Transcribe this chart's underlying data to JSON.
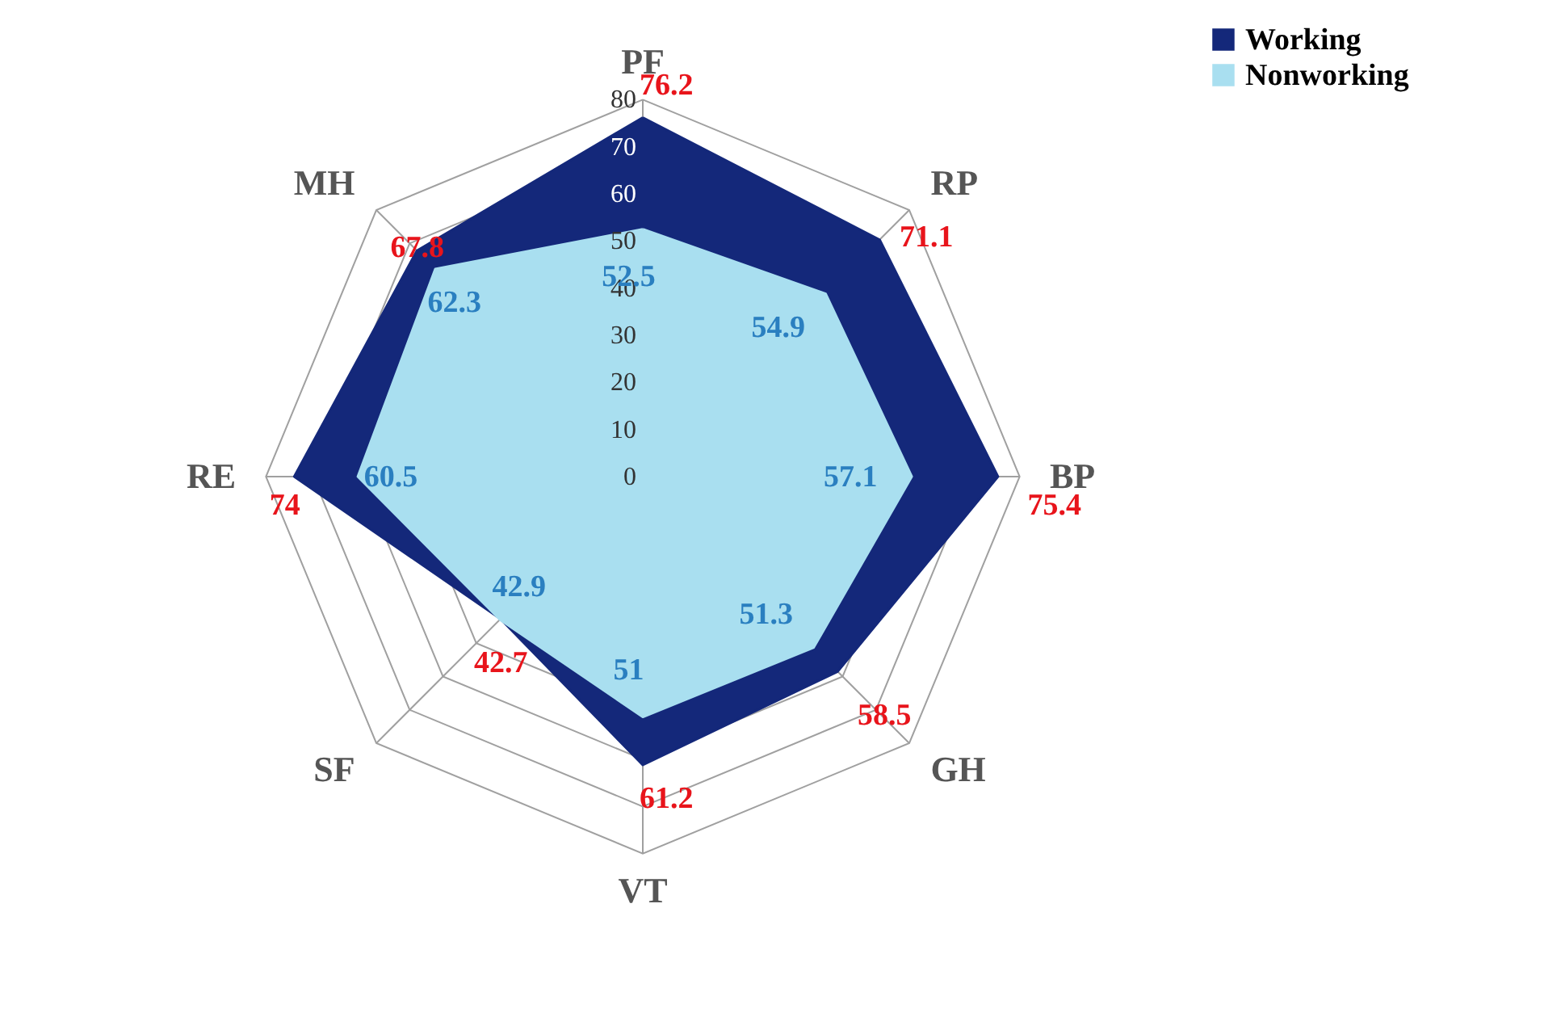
{
  "chart_data": {
    "type": "radar",
    "categories": [
      "PF",
      "RP",
      "BP",
      "GH",
      "VT",
      "SF",
      "RE",
      "MH"
    ],
    "series": [
      {
        "name": "Working",
        "color": "#14287a",
        "values": [
          76.2,
          71.1,
          75.4,
          58.5,
          61.2,
          42.7,
          74,
          67.8
        ]
      },
      {
        "name": "Nonworking",
        "color": "#a9dff0",
        "values": [
          52.5,
          54.9,
          57.1,
          51.3,
          51,
          42.9,
          60.5,
          62.3
        ]
      }
    ],
    "ylim": [
      0,
      80
    ],
    "yticks": [
      0,
      10,
      20,
      30,
      40,
      50,
      60,
      70,
      80
    ],
    "grid": true,
    "data_labels": true,
    "legend": "right"
  }
}
